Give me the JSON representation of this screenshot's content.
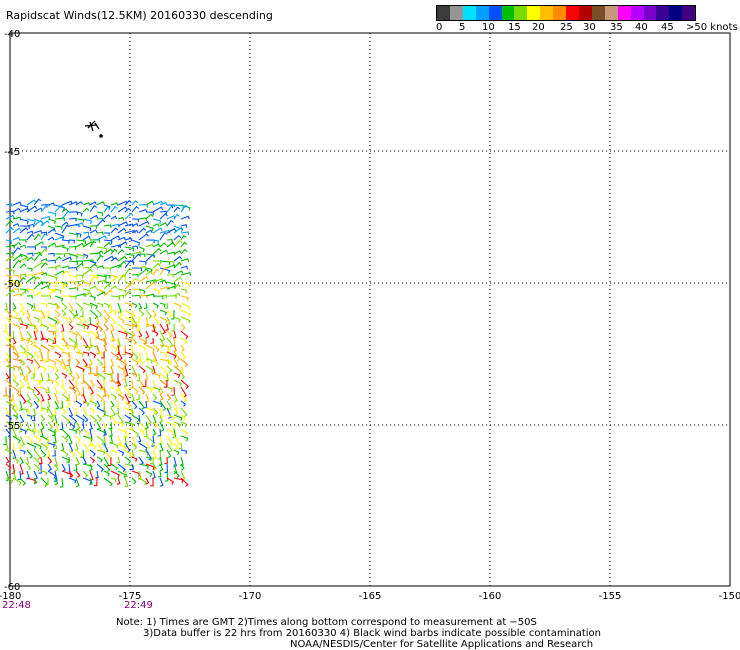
{
  "title": "Rapidscat Winds(12.5KM) 20160330 descending",
  "legend": {
    "colors": [
      "#3c3c3c",
      "#969696",
      "#00e1ff",
      "#00a0ff",
      "#0050ff",
      "#00be00",
      "#78dc00",
      "#ffff00",
      "#ffbe00",
      "#ff8c00",
      "#ff0000",
      "#b40000",
      "#785028",
      "#c89678",
      "#ff00ff",
      "#b400ff",
      "#7800c8",
      "#3c0096",
      "#000080",
      "#400080"
    ],
    "labels": [
      "0",
      "5",
      "10",
      "15",
      "20",
      "25",
      "30",
      "35",
      "40",
      "45",
      ">50 knots"
    ]
  },
  "lon_ticks": [
    "-180",
    "-175",
    "-170",
    "-165",
    "-160",
    "-155",
    "-150"
  ],
  "lat_ticks": [
    "-40",
    "-45",
    "-50",
    "-55",
    "-60"
  ],
  "times": [
    "22:48",
    "22:49"
  ],
  "notes": [
    "Note: 1) Times are GMT 2)Times along bottom correspond to measurement at −50S",
    "3)Data buffer is 22 hrs from 20160330 4) Black wind barbs indicate possible contamination",
    "NOAA/NESDIS/Center for Satellite Applications and Research"
  ]
}
